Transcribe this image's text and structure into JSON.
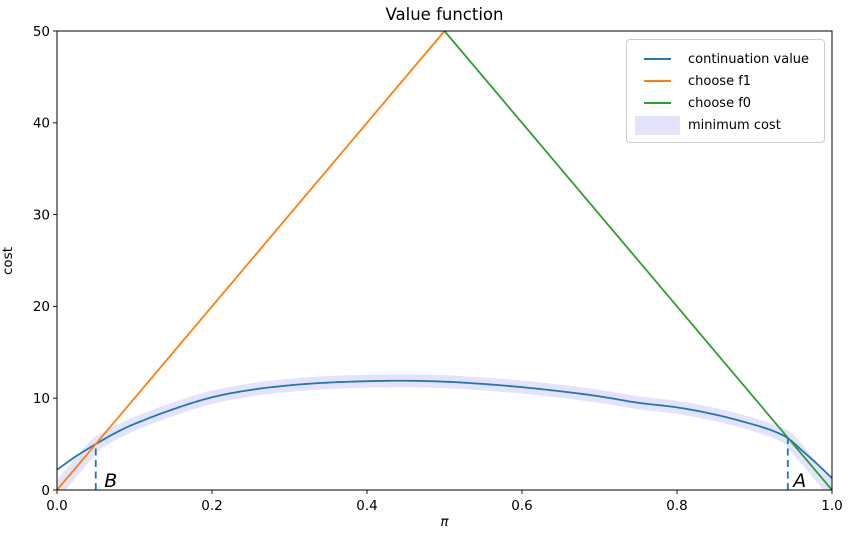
{
  "figure": {
    "title": "Value function",
    "xlabel": "π",
    "ylabel": "cost"
  },
  "chart_data": {
    "type": "line",
    "title": "Value function",
    "xlabel": "π",
    "ylabel": "cost",
    "xlim": [
      0.0,
      1.0
    ],
    "ylim": [
      0,
      50
    ],
    "grid": false,
    "legend_position": "upper right",
    "x_tick_values": [
      0.0,
      0.2,
      0.4,
      0.6,
      0.8,
      1.0
    ],
    "x_tick_labels": [
      "0.0",
      "0.2",
      "0.4",
      "0.6",
      "0.8",
      "1.0"
    ],
    "y_tick_values": [
      0,
      10,
      20,
      30,
      40,
      50
    ],
    "y_tick_labels": [
      "0",
      "10",
      "20",
      "30",
      "40",
      "50"
    ],
    "series": [
      {
        "name": "continuation value",
        "type": "line",
        "color": "#1f77b4",
        "x": [
          0.0,
          0.025,
          0.05,
          0.075,
          0.1,
          0.15,
          0.2,
          0.25,
          0.3,
          0.35,
          0.4,
          0.45,
          0.5,
          0.55,
          0.6,
          0.65,
          0.7,
          0.75,
          0.8,
          0.85,
          0.9,
          0.925,
          0.943,
          0.96,
          0.98,
          1.0
        ],
        "y": [
          2.2,
          3.7,
          5.0,
          6.2,
          7.2,
          8.8,
          10.1,
          10.9,
          11.4,
          11.7,
          11.85,
          11.9,
          11.8,
          11.55,
          11.2,
          10.75,
          10.2,
          9.5,
          9.0,
          8.2,
          7.1,
          6.4,
          5.65,
          4.4,
          2.9,
          1.3
        ]
      },
      {
        "name": "choose f1",
        "type": "line",
        "color": "#ff7f0e",
        "x": [
          0.0,
          0.5
        ],
        "y": [
          0,
          50
        ]
      },
      {
        "name": "choose f0",
        "type": "line",
        "color": "#2ca02c",
        "x": [
          0.5,
          1.0
        ],
        "y": [
          50,
          0
        ]
      },
      {
        "name": "minimum cost",
        "type": "band",
        "color": "#e3e3fb",
        "derive": "pointwise minimum of the three line series",
        "stroke_width": 13
      }
    ],
    "legend": [
      {
        "label": "continuation value",
        "swatch": "line",
        "color": "#1f77b4"
      },
      {
        "label": "choose f1",
        "swatch": "line",
        "color": "#ff7f0e"
      },
      {
        "label": "choose f0",
        "swatch": "line",
        "color": "#2ca02c"
      },
      {
        "label": "minimum cost",
        "swatch": "patch",
        "color": "#e3e3fb"
      }
    ],
    "vlines": [
      {
        "name": "B",
        "x": 0.05,
        "y_from": 0,
        "y_to": 5.0,
        "color": "#1f77b4",
        "style": "dashed"
      },
      {
        "name": "A",
        "x": 0.943,
        "y_from": 0,
        "y_to": 5.65,
        "color": "#1f77b4",
        "style": "dashed"
      }
    ],
    "annotations": [
      {
        "text": "B",
        "x": 0.061,
        "y": 0.3
      },
      {
        "text": "A",
        "x": 0.95,
        "y": 0.3
      }
    ]
  }
}
